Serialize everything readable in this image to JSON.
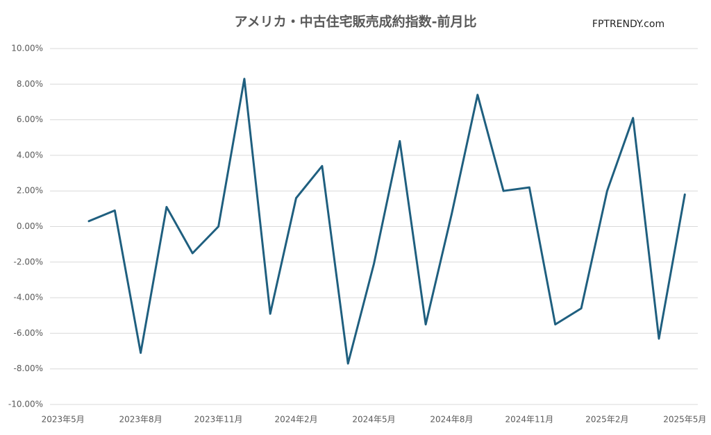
{
  "chart_data": {
    "type": "line",
    "title": "アメリカ・中古住宅販売成約指数-前月比",
    "annotation": "FPTRENDY.com",
    "categories": [
      "2023年5月",
      null,
      null,
      "2023年8月",
      null,
      null,
      "2023年11月",
      null,
      null,
      "2024年2月",
      null,
      null,
      "2024年5月",
      null,
      null,
      "2024年8月",
      null,
      null,
      "2024年11月",
      null,
      null,
      "2025年2月",
      null,
      null,
      "2025年5月"
    ],
    "series": [
      {
        "name": "前月比",
        "color": "#1f5f7f",
        "values": [
          null,
          0.3,
          0.9,
          -7.1,
          1.1,
          -1.5,
          0.0,
          8.3,
          -4.9,
          1.6,
          3.4,
          -7.7,
          -2.1,
          4.8,
          -5.5,
          0.7,
          7.4,
          2.0,
          2.2,
          -5.5,
          -4.6,
          2.0,
          6.1,
          -6.3,
          1.8
        ]
      }
    ],
    "ylim": [
      -10,
      10
    ],
    "yticks": [
      {
        "value": -10,
        "label": "-10.00%"
      },
      {
        "value": -8,
        "label": "-8.00%"
      },
      {
        "value": -6,
        "label": "-6.00%"
      },
      {
        "value": -4,
        "label": "-4.00%"
      },
      {
        "value": -2,
        "label": "-2.00%"
      },
      {
        "value": 0,
        "label": "0.00%"
      },
      {
        "value": 2,
        "label": "2.00%"
      },
      {
        "value": 4,
        "label": "4.00%"
      },
      {
        "value": 6,
        "label": "6.00%"
      },
      {
        "value": 8,
        "label": "8.00%"
      },
      {
        "value": 10,
        "label": "10.00%"
      }
    ],
    "grid": true
  }
}
